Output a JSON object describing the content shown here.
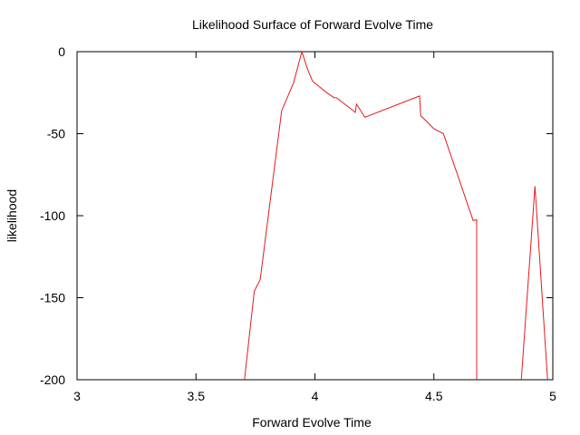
{
  "chart_data": {
    "type": "line",
    "title": "Likelihood Surface of Forward Evolve Time",
    "xlabel": "Forward Evolve Time",
    "ylabel": "likelihood",
    "xlim": [
      3,
      5
    ],
    "ylim": [
      -200,
      0
    ],
    "xticks": [
      "3",
      "3.5",
      "4",
      "4.5",
      "5"
    ],
    "yticks": [
      "0",
      "-50",
      "-100",
      "-150",
      "-200"
    ],
    "grid": false,
    "legend": "none",
    "series": [
      {
        "color": "#e41a1c",
        "points": [
          [
            3.7,
            -205
          ],
          [
            3.745,
            -146
          ],
          [
            3.77,
            -139
          ],
          [
            3.86,
            -36
          ],
          [
            3.91,
            -19
          ],
          [
            3.945,
            0
          ],
          [
            3.97,
            -11
          ],
          [
            3.99,
            -18
          ],
          [
            4.05,
            -25
          ],
          [
            4.08,
            -28
          ],
          [
            4.09,
            -28
          ],
          [
            4.17,
            -37
          ],
          [
            4.175,
            -32
          ],
          [
            4.21,
            -40
          ],
          [
            4.44,
            -27
          ],
          [
            4.445,
            -39
          ],
          [
            4.5,
            -47
          ],
          [
            4.54,
            -50
          ],
          [
            4.665,
            -103
          ],
          [
            4.68,
            -102.5
          ],
          [
            4.68,
            -205
          ]
        ]
      },
      {
        "color": "#e41a1c",
        "points": [
          [
            4.865,
            -205
          ],
          [
            4.925,
            -82
          ],
          [
            4.98,
            -205
          ]
        ]
      }
    ]
  }
}
